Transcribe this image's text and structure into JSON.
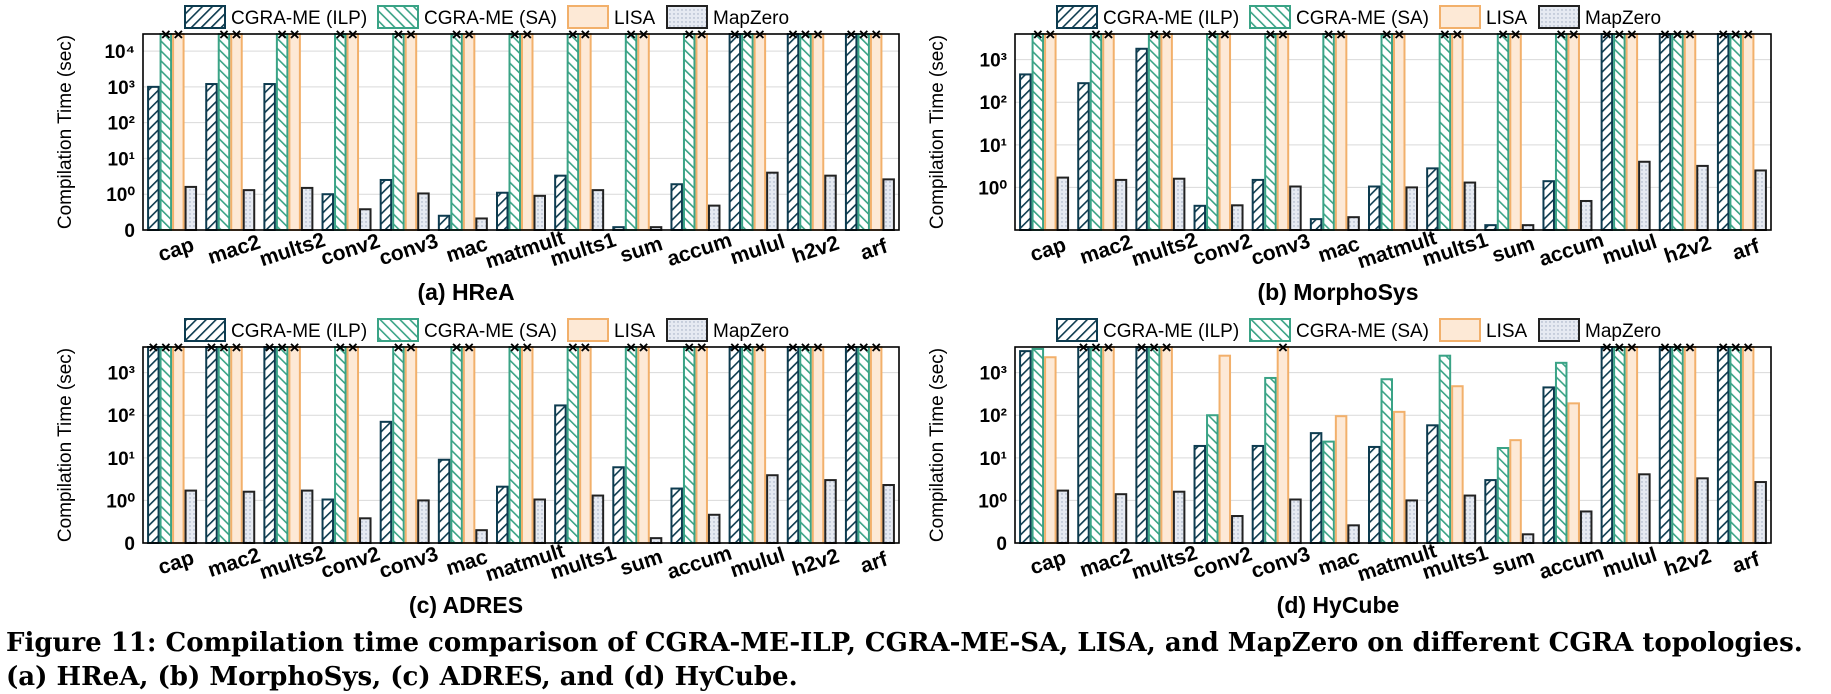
{
  "chart_data": [
    {
      "type": "bar",
      "title": "(a) HReA",
      "ylabel": "Compilation Time (sec)",
      "yscale": "log",
      "ylim": [
        0.1,
        30000
      ],
      "yticks": [
        "0",
        "10⁰",
        "10¹",
        "10²",
        "10³",
        "10⁴"
      ],
      "categories": [
        "cap",
        "mac2",
        "mults2",
        "conv2",
        "conv3",
        "mac",
        "matmult",
        "mults1",
        "sum",
        "accum",
        "mulul",
        "h2v2",
        "arf"
      ],
      "series": [
        {
          "name": "CGRA-ME (ILP)",
          "values": [
            1000,
            1200,
            1200,
            1.0,
            2.5,
            0.25,
            1.1,
            3.3,
            0.12,
            1.9,
            30000,
            30000,
            30000
          ],
          "failed": [
            false,
            false,
            false,
            false,
            false,
            false,
            false,
            false,
            false,
            false,
            true,
            true,
            true
          ]
        },
        {
          "name": "CGRA-ME (SA)",
          "values": [
            30000,
            30000,
            30000,
            30000,
            30000,
            30000,
            30000,
            30000,
            30000,
            30000,
            30000,
            30000,
            30000
          ],
          "failed": [
            true,
            true,
            true,
            true,
            true,
            true,
            true,
            true,
            true,
            true,
            true,
            true,
            true
          ]
        },
        {
          "name": "LISA",
          "values": [
            30000,
            30000,
            30000,
            30000,
            30000,
            30000,
            30000,
            30000,
            30000,
            30000,
            30000,
            30000,
            30000
          ],
          "failed": [
            true,
            true,
            true,
            true,
            true,
            true,
            true,
            true,
            true,
            true,
            true,
            true,
            true
          ]
        },
        {
          "name": "MapZero",
          "values": [
            1.6,
            1.3,
            1.5,
            0.38,
            1.05,
            0.21,
            0.9,
            1.3,
            0.12,
            0.48,
            4.0,
            3.3,
            2.6
          ]
        }
      ]
    },
    {
      "type": "bar",
      "title": "(b) MorphoSys",
      "ylabel": "Compilation Time (sec)",
      "yscale": "log",
      "ylim": [
        0.1,
        4000
      ],
      "yticks": [
        "10⁰",
        "10¹",
        "10²",
        "10³"
      ],
      "categories": [
        "cap",
        "mac2",
        "mults2",
        "conv2",
        "conv3",
        "mac",
        "matmult",
        "mults1",
        "sum",
        "accum",
        "mulul",
        "h2v2",
        "arf"
      ],
      "series": [
        {
          "name": "CGRA-ME (ILP)",
          "values": [
            450,
            280,
            1800,
            0.37,
            1.5,
            0.18,
            1.05,
            2.8,
            0.13,
            1.4,
            4000,
            4000,
            4000
          ],
          "failed": [
            false,
            false,
            false,
            false,
            false,
            false,
            false,
            false,
            false,
            false,
            true,
            true,
            true
          ]
        },
        {
          "name": "CGRA-ME (SA)",
          "values": [
            4000,
            4000,
            4000,
            4000,
            4000,
            4000,
            4000,
            4000,
            4000,
            4000,
            4000,
            4000,
            4000
          ],
          "failed": [
            true,
            true,
            true,
            true,
            true,
            true,
            true,
            true,
            true,
            true,
            true,
            true,
            true
          ]
        },
        {
          "name": "LISA",
          "values": [
            4000,
            4000,
            4000,
            4000,
            4000,
            4000,
            4000,
            4000,
            4000,
            4000,
            4000,
            4000,
            4000
          ],
          "failed": [
            true,
            true,
            true,
            true,
            true,
            true,
            true,
            true,
            true,
            true,
            true,
            true,
            true
          ]
        },
        {
          "name": "MapZero",
          "values": [
            1.7,
            1.5,
            1.6,
            0.38,
            1.05,
            0.2,
            1.0,
            1.3,
            0.13,
            0.48,
            4.0,
            3.2,
            2.5
          ]
        }
      ]
    },
    {
      "type": "bar",
      "title": "(c) ADRES",
      "ylabel": "Compilation Time (sec)",
      "yscale": "log",
      "ylim": [
        0.1,
        4000
      ],
      "yticks": [
        "0",
        "10⁰",
        "10¹",
        "10²",
        "10³"
      ],
      "categories": [
        "cap",
        "mac2",
        "mults2",
        "conv2",
        "conv3",
        "mac",
        "matmult",
        "mults1",
        "sum",
        "accum",
        "mulul",
        "h2v2",
        "arf"
      ],
      "series": [
        {
          "name": "CGRA-ME (ILP)",
          "values": [
            4000,
            4000,
            4000,
            1.05,
            70,
            9,
            2.1,
            170,
            6,
            1.9,
            4000,
            4000,
            4000
          ],
          "failed": [
            true,
            true,
            true,
            false,
            false,
            false,
            false,
            false,
            false,
            false,
            true,
            true,
            true
          ]
        },
        {
          "name": "CGRA-ME (SA)",
          "values": [
            4000,
            4000,
            4000,
            4000,
            4000,
            4000,
            4000,
            4000,
            4000,
            4000,
            4000,
            4000,
            4000
          ],
          "failed": [
            true,
            true,
            true,
            true,
            true,
            true,
            true,
            true,
            true,
            true,
            true,
            true,
            true
          ]
        },
        {
          "name": "LISA",
          "values": [
            4000,
            4000,
            4000,
            4000,
            4000,
            4000,
            4000,
            4000,
            4000,
            4000,
            4000,
            4000,
            4000
          ],
          "failed": [
            true,
            true,
            true,
            true,
            true,
            true,
            true,
            true,
            true,
            true,
            true,
            true,
            true
          ]
        },
        {
          "name": "MapZero",
          "values": [
            1.7,
            1.6,
            1.7,
            0.38,
            1.0,
            0.2,
            1.05,
            1.3,
            0.13,
            0.46,
            3.9,
            3.0,
            2.3
          ]
        }
      ]
    },
    {
      "type": "bar",
      "title": "(d) HyCube",
      "ylabel": "Compilation Time (sec)",
      "yscale": "log",
      "ylim": [
        0.1,
        4000
      ],
      "yticks": [
        "0",
        "10⁰",
        "10¹",
        "10²",
        "10³"
      ],
      "categories": [
        "cap",
        "mac2",
        "mults2",
        "conv2",
        "conv3",
        "mac",
        "matmult",
        "mults1",
        "sum",
        "accum",
        "mulul",
        "h2v2",
        "arf"
      ],
      "series": [
        {
          "name": "CGRA-ME (ILP)",
          "values": [
            3200,
            4000,
            4000,
            19,
            19,
            38,
            18,
            58,
            3,
            450,
            4000,
            4000,
            4000
          ],
          "failed": [
            false,
            true,
            true,
            false,
            false,
            false,
            false,
            false,
            false,
            false,
            true,
            true,
            true
          ]
        },
        {
          "name": "CGRA-ME (SA)",
          "values": [
            3600,
            4000,
            4000,
            100,
            750,
            24,
            700,
            2500,
            17,
            1700,
            4000,
            4000,
            4000
          ],
          "failed": [
            false,
            true,
            true,
            false,
            false,
            false,
            false,
            false,
            false,
            false,
            true,
            true,
            true
          ]
        },
        {
          "name": "LISA",
          "values": [
            2300,
            4000,
            4000,
            2500,
            4000,
            95,
            120,
            480,
            26,
            190,
            4000,
            4000,
            4000
          ],
          "failed": [
            false,
            true,
            true,
            false,
            true,
            false,
            false,
            false,
            false,
            false,
            true,
            true,
            true
          ]
        },
        {
          "name": "MapZero",
          "values": [
            1.7,
            1.4,
            1.6,
            0.43,
            1.05,
            0.26,
            1.0,
            1.3,
            0.16,
            0.55,
            4.1,
            3.3,
            2.7
          ]
        }
      ]
    }
  ],
  "series_style": [
    {
      "color": "#0d3b4f",
      "fill": "#ffffff",
      "pattern": "diag-dark"
    },
    {
      "color": "#3aa386",
      "fill": "#ffffff",
      "pattern": "diag-green"
    },
    {
      "color": "#f2b06b",
      "fill": "#fde9d6",
      "pattern": "none"
    },
    {
      "color": "#222222",
      "fill": "#e6eaf2",
      "pattern": "dots"
    }
  ],
  "fail_marker": "×",
  "caption": {
    "line1": "Figure 11: Compilation time comparison of CGRA-ME-ILP, CGRA-ME-SA, LISA, and MapZero on different CGRA topologies.",
    "line2": "(a) HReA, (b) MorphoSys, (c) ADRES, and (d) HyCube."
  }
}
